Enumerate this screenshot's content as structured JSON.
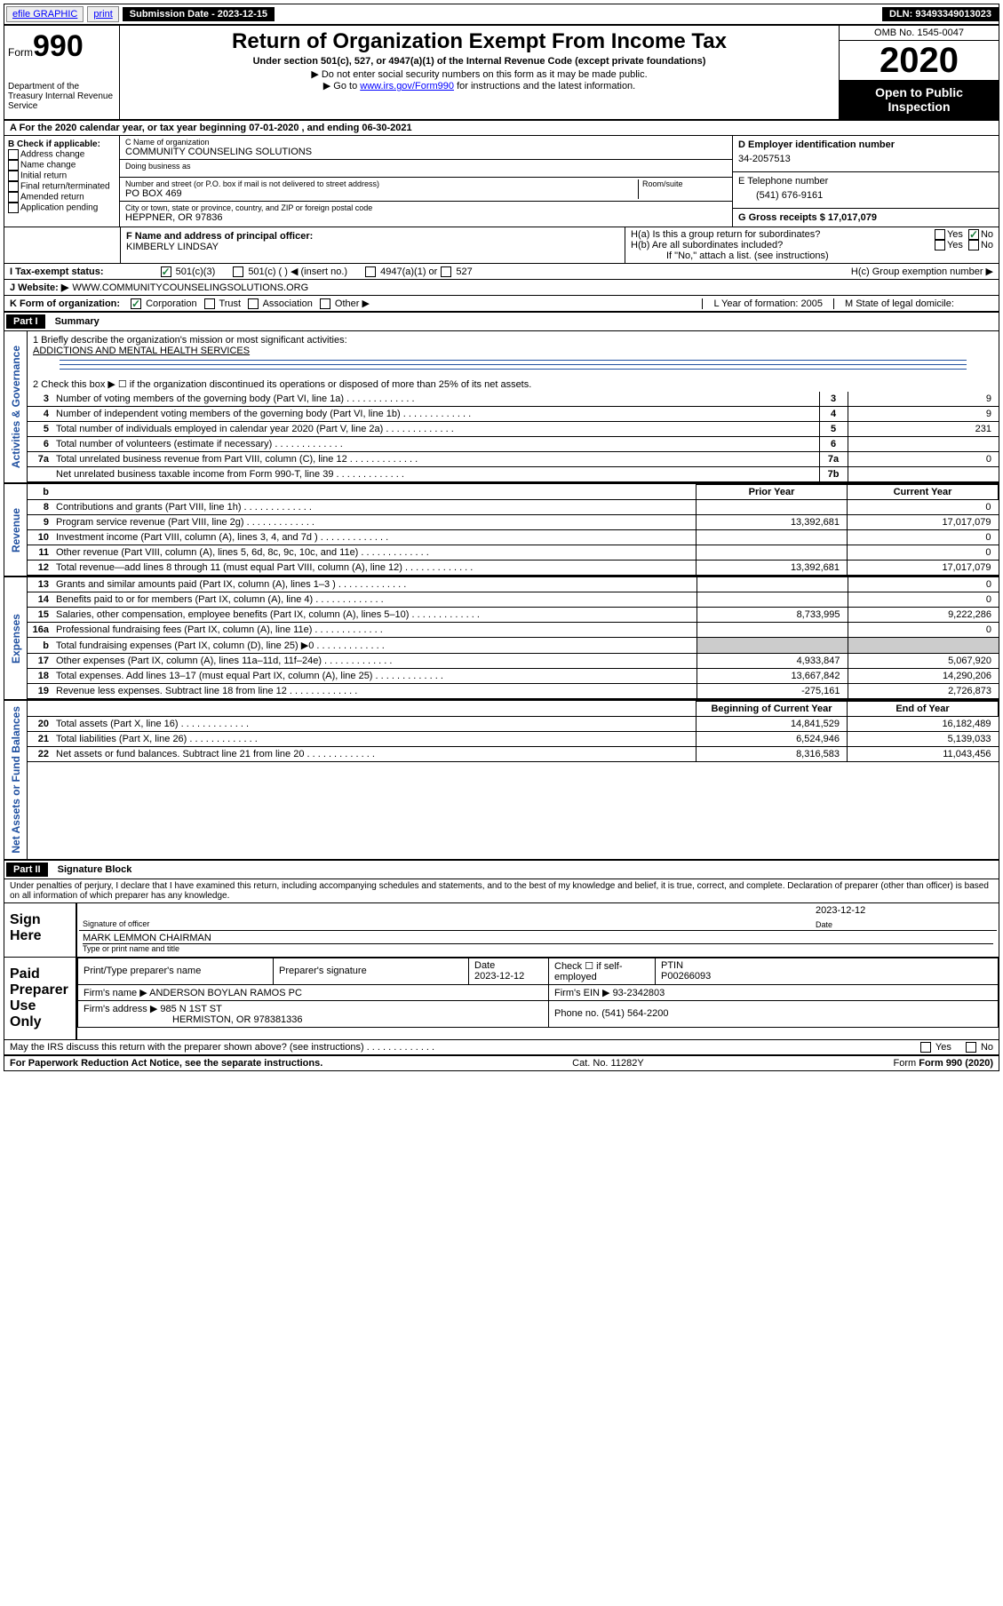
{
  "topbar": {
    "efile": "efile GRAPHIC",
    "print": "print",
    "submission_label": "Submission Date - 2023-12-15",
    "dln": "DLN: 93493349013023"
  },
  "header": {
    "form_label": "Form",
    "form_number": "990",
    "dept": "Department of the Treasury Internal Revenue Service",
    "title": "Return of Organization Exempt From Income Tax",
    "subtitle": "Under section 501(c), 527, or 4947(a)(1) of the Internal Revenue Code (except private foundations)",
    "instr1": "▶ Do not enter social security numbers on this form as it may be made public.",
    "instr2_pre": "▶ Go to ",
    "instr2_link": "www.irs.gov/Form990",
    "instr2_post": " for instructions and the latest information.",
    "omb": "OMB No. 1545-0047",
    "year": "2020",
    "open_public": "Open to Public Inspection"
  },
  "period": {
    "line_a": "A For the 2020 calendar year, or tax year beginning 07-01-2020   , and ending 06-30-2021"
  },
  "block_b": {
    "title": "B Check if applicable:",
    "opts": [
      "Address change",
      "Name change",
      "Initial return",
      "Final return/terminated",
      "Amended return",
      "Application pending"
    ]
  },
  "block_c": {
    "name_label": "C Name of organization",
    "name": "COMMUNITY COUNSELING SOLUTIONS",
    "dba_label": "Doing business as",
    "dba": "",
    "addr_label": "Number and street (or P.O. box if mail is not delivered to street address)",
    "room_label": "Room/suite",
    "addr": "PO BOX 469",
    "city_label": "City or town, state or province, country, and ZIP or foreign postal code",
    "city": "HEPPNER, OR  97836"
  },
  "block_d": {
    "ein_label": "D Employer identification number",
    "ein": "34-2057513",
    "phone_label": "E Telephone number",
    "phone": "(541) 676-9161",
    "gross_label": "G Gross receipts $ 17,017,079"
  },
  "block_f": {
    "label": "F Name and address of principal officer:",
    "name": "KIMBERLY LINDSAY"
  },
  "block_h": {
    "ha": "H(a)  Is this a group return for subordinates?",
    "hb": "H(b)  Are all subordinates included?",
    "hb_note": "If \"No,\" attach a list. (see instructions)",
    "hc": "H(c)  Group exemption number ▶",
    "yes": "Yes",
    "no": "No"
  },
  "block_i": {
    "label": "I  Tax-exempt status:",
    "opts": [
      "501(c)(3)",
      "501(c) (  ) ◀ (insert no.)",
      "4947(a)(1) or",
      "527"
    ]
  },
  "block_j": {
    "label": "J  Website: ▶",
    "value": "WWW.COMMUNITYCOUNSELINGSOLUTIONS.ORG"
  },
  "block_k": {
    "label": "K Form of organization:",
    "opts": [
      "Corporation",
      "Trust",
      "Association",
      "Other ▶"
    ]
  },
  "block_l": {
    "label": "L Year of formation: 2005"
  },
  "block_m": {
    "label": "M State of legal domicile:"
  },
  "part1": {
    "header": "Part I",
    "title": "Summary",
    "q1_label": "1  Briefly describe the organization's mission or most significant activities:",
    "q1_value": "ADDICTIONS AND MENTAL HEALTH SERVICES",
    "q2": "2   Check this box ▶ ☐  if the organization discontinued its operations or disposed of more than 25% of its net assets."
  },
  "sections": {
    "governance": "Activities & Governance",
    "revenue": "Revenue",
    "expenses": "Expenses",
    "netassets": "Net Assets or Fund Balances"
  },
  "governance_rows": [
    {
      "n": "3",
      "label": "Number of voting members of the governing body (Part VI, line 1a)",
      "box": "3",
      "val": "9"
    },
    {
      "n": "4",
      "label": "Number of independent voting members of the governing body (Part VI, line 1b)",
      "box": "4",
      "val": "9"
    },
    {
      "n": "5",
      "label": "Total number of individuals employed in calendar year 2020 (Part V, line 2a)",
      "box": "5",
      "val": "231"
    },
    {
      "n": "6",
      "label": "Total number of volunteers (estimate if necessary)",
      "box": "6",
      "val": ""
    },
    {
      "n": "7a",
      "label": "Total unrelated business revenue from Part VIII, column (C), line 12",
      "box": "7a",
      "val": "0"
    },
    {
      "n": "",
      "label": "Net unrelated business taxable income from Form 990-T, line 39",
      "box": "7b",
      "val": ""
    }
  ],
  "rev_header": {
    "b": "b",
    "prior": "Prior Year",
    "curr": "Current Year"
  },
  "revenue_rows": [
    {
      "n": "8",
      "label": "Contributions and grants (Part VIII, line 1h)",
      "prior": "",
      "curr": "0"
    },
    {
      "n": "9",
      "label": "Program service revenue (Part VIII, line 2g)",
      "prior": "13,392,681",
      "curr": "17,017,079"
    },
    {
      "n": "10",
      "label": "Investment income (Part VIII, column (A), lines 3, 4, and 7d )",
      "prior": "",
      "curr": "0"
    },
    {
      "n": "11",
      "label": "Other revenue (Part VIII, column (A), lines 5, 6d, 8c, 9c, 10c, and 11e)",
      "prior": "",
      "curr": "0"
    },
    {
      "n": "12",
      "label": "Total revenue—add lines 8 through 11 (must equal Part VIII, column (A), line 12)",
      "prior": "13,392,681",
      "curr": "17,017,079"
    }
  ],
  "expense_rows": [
    {
      "n": "13",
      "label": "Grants and similar amounts paid (Part IX, column (A), lines 1–3 )",
      "prior": "",
      "curr": "0"
    },
    {
      "n": "14",
      "label": "Benefits paid to or for members (Part IX, column (A), line 4)",
      "prior": "",
      "curr": "0"
    },
    {
      "n": "15",
      "label": "Salaries, other compensation, employee benefits (Part IX, column (A), lines 5–10)",
      "prior": "8,733,995",
      "curr": "9,222,286"
    },
    {
      "n": "16a",
      "label": "Professional fundraising fees (Part IX, column (A), line 11e)",
      "prior": "",
      "curr": "0"
    },
    {
      "n": "b",
      "label": "Total fundraising expenses (Part IX, column (D), line 25) ▶0",
      "prior": "—",
      "curr": "—"
    },
    {
      "n": "17",
      "label": "Other expenses (Part IX, column (A), lines 11a–11d, 11f–24e)",
      "prior": "4,933,847",
      "curr": "5,067,920"
    },
    {
      "n": "18",
      "label": "Total expenses. Add lines 13–17 (must equal Part IX, column (A), line 25)",
      "prior": "13,667,842",
      "curr": "14,290,206"
    },
    {
      "n": "19",
      "label": "Revenue less expenses. Subtract line 18 from line 12",
      "prior": "-275,161",
      "curr": "2,726,873"
    }
  ],
  "na_header": {
    "prior": "Beginning of Current Year",
    "curr": "End of Year"
  },
  "netassets_rows": [
    {
      "n": "20",
      "label": "Total assets (Part X, line 16)",
      "prior": "14,841,529",
      "curr": "16,182,489"
    },
    {
      "n": "21",
      "label": "Total liabilities (Part X, line 26)",
      "prior": "6,524,946",
      "curr": "5,139,033"
    },
    {
      "n": "22",
      "label": "Net assets or fund balances. Subtract line 21 from line 20",
      "prior": "8,316,583",
      "curr": "11,043,456"
    }
  ],
  "part2": {
    "header": "Part II",
    "title": "Signature Block",
    "decl": "Under penalties of perjury, I declare that I have examined this return, including accompanying schedules and statements, and to the best of my knowledge and belief, it is true, correct, and complete. Declaration of preparer (other than officer) is based on all information of which preparer has any knowledge."
  },
  "sign": {
    "sign_here": "Sign Here",
    "sig_officer": "Signature of officer",
    "date": "Date",
    "date_val": "2023-12-12",
    "name_title": "MARK LEMMON CHAIRMAN",
    "name_label": "Type or print name and title"
  },
  "paid": {
    "label": "Paid Preparer Use Only",
    "h1": "Print/Type preparer's name",
    "h2": "Preparer's signature",
    "h3": "Date",
    "h3v": "2023-12-12",
    "h4": "Check ☐ if self-employed",
    "h5": "PTIN",
    "h5v": "P00266093",
    "firm_name_lbl": "Firm's name    ▶",
    "firm_name": "ANDERSON BOYLAN RAMOS PC",
    "firm_ein_lbl": "Firm's EIN ▶",
    "firm_ein": "93-2342803",
    "firm_addr_lbl": "Firm's address ▶",
    "firm_addr1": "985 N 1ST ST",
    "firm_addr2": "HERMISTON, OR  978381336",
    "firm_phone_lbl": "Phone no.",
    "firm_phone": "(541) 564-2200"
  },
  "discuss": {
    "q": "May the IRS discuss this return with the preparer shown above? (see instructions)",
    "yes": "Yes",
    "no": "No"
  },
  "footer": {
    "left": "For Paperwork Reduction Act Notice, see the separate instructions.",
    "mid": "Cat. No. 11282Y",
    "right": "Form 990 (2020)"
  }
}
